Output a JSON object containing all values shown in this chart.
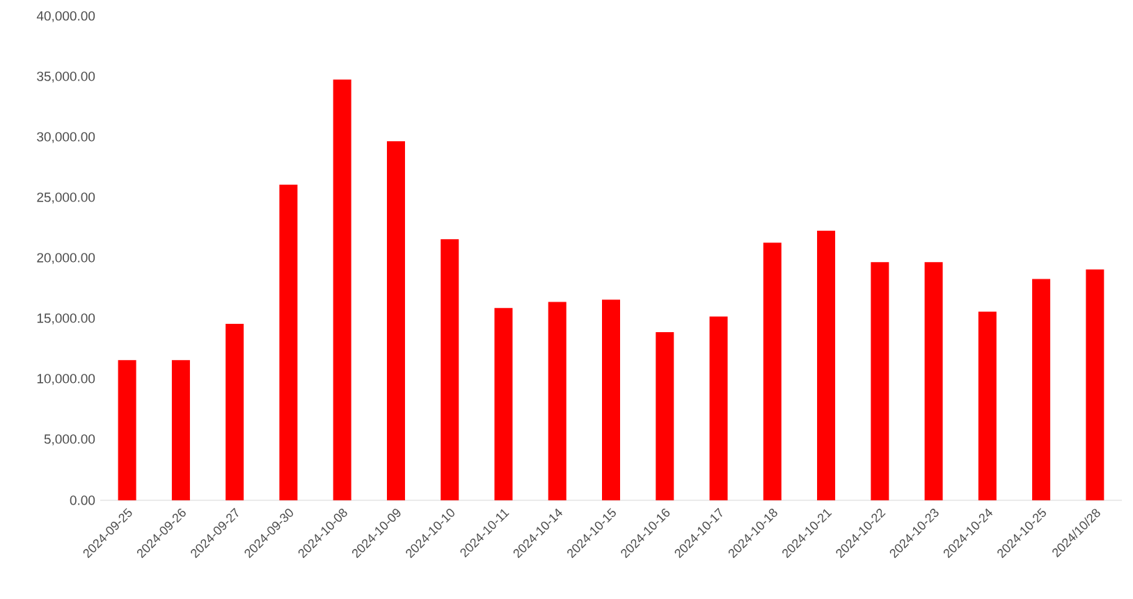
{
  "chart_data": {
    "type": "bar",
    "categories": [
      "2024-09-25",
      "2024-09-26",
      "2024-09-27",
      "2024-09-30",
      "2024-10-08",
      "2024-10-09",
      "2024-10-10",
      "2024-10-11",
      "2024-10-14",
      "2024-10-15",
      "2024-10-16",
      "2024-10-17",
      "2024-10-18",
      "2024-10-21",
      "2024-10-22",
      "2024-10-23",
      "2024-10-24",
      "2024-10-25",
      "2024/10/28"
    ],
    "values": [
      11600,
      11600,
      14600,
      26100,
      34800,
      29700,
      21600,
      15900,
      16400,
      16600,
      13900,
      15200,
      21300,
      22300,
      19700,
      19700,
      15600,
      18300,
      19100
    ],
    "color": "#ff0000",
    "ylim": [
      0,
      40000
    ],
    "yticks": [
      {
        "value": 0,
        "label": "0.00"
      },
      {
        "value": 5000,
        "label": "5,000.00"
      },
      {
        "value": 10000,
        "label": "10,000.00"
      },
      {
        "value": 15000,
        "label": "15,000.00"
      },
      {
        "value": 20000,
        "label": "20,000.00"
      },
      {
        "value": 25000,
        "label": "25,000.00"
      },
      {
        "value": 30000,
        "label": "30,000.00"
      },
      {
        "value": 35000,
        "label": "35,000.00"
      },
      {
        "value": 40000,
        "label": "40,000.00"
      }
    ],
    "grid": false
  }
}
